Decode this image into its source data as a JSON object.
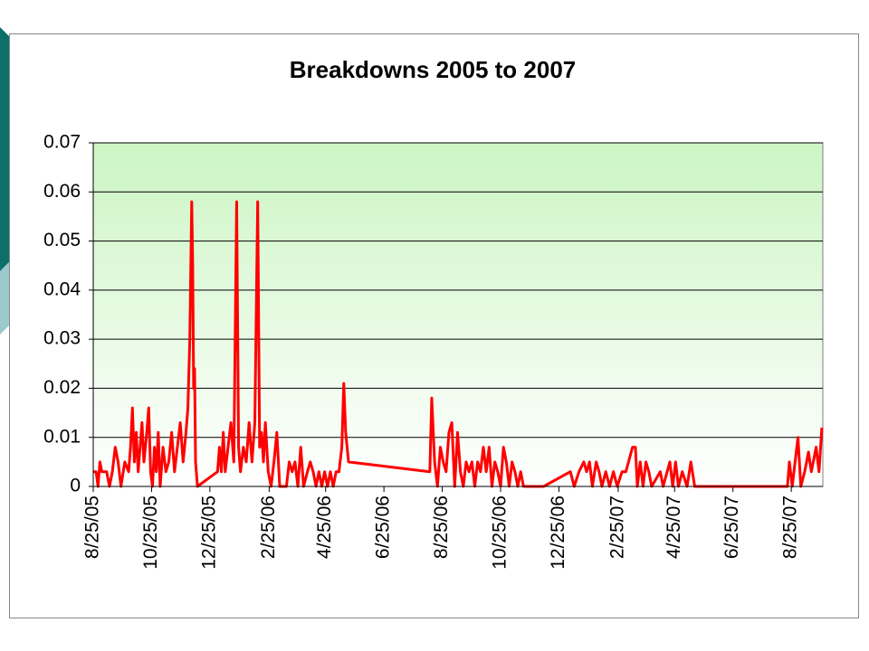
{
  "chart_data": {
    "type": "line",
    "title": "Breakdowns 2005 to 2007",
    "color": "#ff0000",
    "grid": true,
    "ylim": [
      0,
      0.07
    ],
    "yticks": [
      0,
      0.01,
      0.02,
      0.03,
      0.04,
      0.05,
      0.06,
      0.07
    ],
    "xlim": [
      "2005-08-25",
      "2007-09-27"
    ],
    "xticks": [
      {
        "value": "2005-08-25",
        "label": "8/25/05"
      },
      {
        "value": "2005-10-25",
        "label": "10/25/05"
      },
      {
        "value": "2005-12-25",
        "label": "12/25/05"
      },
      {
        "value": "2006-02-25",
        "label": "2/25/06"
      },
      {
        "value": "2006-04-25",
        "label": "4/25/06"
      },
      {
        "value": "2006-06-25",
        "label": "6/25/06"
      },
      {
        "value": "2006-08-25",
        "label": "8/25/06"
      },
      {
        "value": "2006-10-25",
        "label": "10/25/06"
      },
      {
        "value": "2006-12-25",
        "label": "12/25/06"
      },
      {
        "value": "2007-02-25",
        "label": "2/25/07"
      },
      {
        "value": "2007-04-25",
        "label": "4/25/07"
      },
      {
        "value": "2007-06-25",
        "label": "6/25/07"
      },
      {
        "value": "2007-08-25",
        "label": "8/25/07"
      }
    ],
    "x": [
      "2005-08-25",
      "2005-08-28",
      "2005-08-30",
      "2005-09-01",
      "2005-09-03",
      "2005-09-08",
      "2005-09-11",
      "2005-09-14",
      "2005-09-17",
      "2005-09-20",
      "2005-09-23",
      "2005-09-27",
      "2005-10-01",
      "2005-10-03",
      "2005-10-05",
      "2005-10-07",
      "2005-10-09",
      "2005-10-11",
      "2005-10-13",
      "2005-10-15",
      "2005-10-17",
      "2005-10-20",
      "2005-10-22",
      "2005-10-24",
      "2005-10-26",
      "2005-10-28",
      "2005-10-30",
      "2005-11-01",
      "2005-11-03",
      "2005-11-06",
      "2005-11-09",
      "2005-11-12",
      "2005-11-15",
      "2005-11-18",
      "2005-11-21",
      "2005-11-24",
      "2005-11-27",
      "2005-11-30",
      "2005-12-02",
      "2005-12-04",
      "2005-12-06",
      "2005-12-07",
      "2005-12-08",
      "2005-12-09",
      "2005-12-10",
      "2005-12-12",
      "2006-01-02",
      "2006-01-04",
      "2006-01-06",
      "2006-01-08",
      "2006-01-10",
      "2006-01-13",
      "2006-01-16",
      "2006-01-19",
      "2006-01-22",
      "2006-01-24",
      "2006-01-26",
      "2006-01-29",
      "2006-02-01",
      "2006-02-04",
      "2006-02-07",
      "2006-02-10",
      "2006-02-13",
      "2006-02-15",
      "2006-02-17",
      "2006-02-19",
      "2006-02-21",
      "2006-02-24",
      "2006-02-27",
      "2006-03-02",
      "2006-03-05",
      "2006-03-08",
      "2006-03-15",
      "2006-03-18",
      "2006-03-21",
      "2006-03-24",
      "2006-03-27",
      "2006-03-30",
      "2006-04-02",
      "2006-04-06",
      "2006-04-09",
      "2006-04-12",
      "2006-04-15",
      "2006-04-18",
      "2006-04-21",
      "2006-04-24",
      "2006-04-27",
      "2006-04-30",
      "2006-05-03",
      "2006-05-06",
      "2006-05-09",
      "2006-05-12",
      "2006-05-14",
      "2006-05-16",
      "2006-05-19",
      "2006-08-12",
      "2006-08-14",
      "2006-08-17",
      "2006-08-20",
      "2006-08-23",
      "2006-08-26",
      "2006-08-29",
      "2006-09-01",
      "2006-09-04",
      "2006-09-07",
      "2006-09-10",
      "2006-09-13",
      "2006-09-16",
      "2006-09-19",
      "2006-09-22",
      "2006-09-25",
      "2006-09-28",
      "2006-10-01",
      "2006-10-04",
      "2006-10-07",
      "2006-10-10",
      "2006-10-13",
      "2006-10-16",
      "2006-10-19",
      "2006-10-22",
      "2006-10-25",
      "2006-10-28",
      "2006-10-31",
      "2006-11-03",
      "2006-11-06",
      "2006-11-09",
      "2006-11-12",
      "2006-11-15",
      "2006-11-18",
      "2006-12-09",
      "2007-01-06",
      "2007-01-10",
      "2007-01-15",
      "2007-01-20",
      "2007-01-23",
      "2007-01-26",
      "2007-01-29",
      "2007-02-02",
      "2007-02-05",
      "2007-02-08",
      "2007-02-12",
      "2007-02-16",
      "2007-02-20",
      "2007-02-24",
      "2007-03-01",
      "2007-03-05",
      "2007-03-12",
      "2007-03-15",
      "2007-03-17",
      "2007-03-20",
      "2007-03-23",
      "2007-03-26",
      "2007-03-29",
      "2007-04-01",
      "2007-04-10",
      "2007-04-13",
      "2007-04-20",
      "2007-04-23",
      "2007-04-26",
      "2007-04-29",
      "2007-05-03",
      "2007-05-08",
      "2007-05-12",
      "2007-05-16",
      "2007-08-21",
      "2007-08-23",
      "2007-08-26",
      "2007-08-29",
      "2007-09-01",
      "2007-09-04",
      "2007-09-08",
      "2007-09-12",
      "2007-09-15",
      "2007-09-20",
      "2007-09-23",
      "2007-09-26"
    ],
    "values": [
      0.003,
      0.003,
      0,
      0.005,
      0.003,
      0.003,
      0,
      0.003,
      0.008,
      0.005,
      0,
      0.005,
      0.003,
      0.008,
      0.016,
      0.005,
      0.011,
      0.003,
      0.008,
      0.013,
      0.005,
      0.011,
      0.016,
      0.003,
      0,
      0.008,
      0.003,
      0.011,
      0,
      0.008,
      0.003,
      0.005,
      0.011,
      0.003,
      0.008,
      0.013,
      0.005,
      0.011,
      0.016,
      0.03,
      0.058,
      0.045,
      0.02,
      0.024,
      0.005,
      0,
      0.003,
      0.008,
      0.003,
      0.011,
      0.003,
      0.008,
      0.013,
      0.005,
      0.058,
      0.008,
      0.003,
      0.008,
      0.005,
      0.013,
      0.005,
      0.013,
      0.058,
      0.008,
      0.011,
      0.005,
      0.013,
      0.003,
      0,
      0.005,
      0.011,
      0,
      0,
      0.005,
      0.003,
      0.005,
      0,
      0.008,
      0,
      0.003,
      0.005,
      0.003,
      0,
      0.003,
      0,
      0.003,
      0,
      0.003,
      0,
      0.003,
      0.003,
      0.008,
      0.021,
      0.011,
      0.005,
      0.003,
      0.018,
      0.005,
      0,
      0.008,
      0.005,
      0.003,
      0.011,
      0.013,
      0,
      0.011,
      0.003,
      0,
      0.005,
      0.003,
      0.005,
      0,
      0.005,
      0.003,
      0.008,
      0.003,
      0.008,
      0,
      0.005,
      0.003,
      0,
      0.008,
      0.005,
      0,
      0.005,
      0.003,
      0,
      0.003,
      0,
      0,
      0.003,
      0,
      0.003,
      0.005,
      0.003,
      0.005,
      0,
      0.005,
      0.003,
      0,
      0.003,
      0,
      0.003,
      0,
      0.003,
      0.003,
      0.008,
      0.008,
      0,
      0.005,
      0,
      0.005,
      0.003,
      0,
      0.003,
      0,
      0.005,
      0,
      0.005,
      0,
      0.003,
      0,
      0.005,
      0,
      0,
      0.005,
      0,
      0.005,
      0.01,
      0,
      0.003,
      0.007,
      0.003,
      0.008,
      0.003,
      0.012
    ]
  }
}
